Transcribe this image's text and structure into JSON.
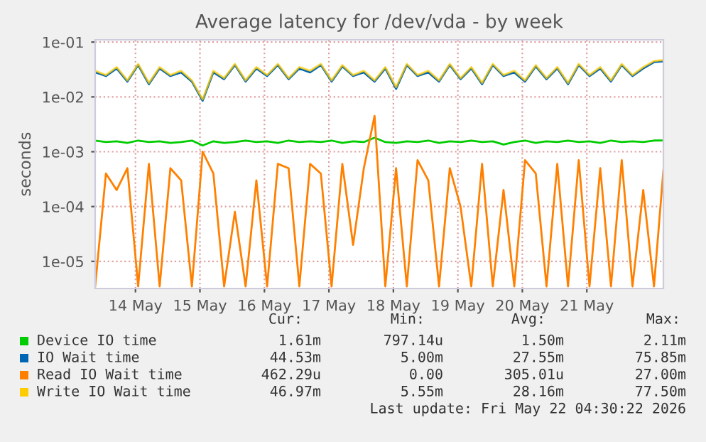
{
  "chart_data": {
    "type": "line",
    "title": "Average latency for /dev/vda - by week",
    "ylabel": "seconds",
    "x": [
      "2026-05-13T09:00",
      "2026-05-13T13:00",
      "2026-05-13T17:00",
      "2026-05-13T21:00",
      "2026-05-14T01:00",
      "2026-05-14T05:00",
      "2026-05-14T09:00",
      "2026-05-14T13:00",
      "2026-05-14T17:00",
      "2026-05-14T21:00",
      "2026-05-15T01:00",
      "2026-05-15T05:00",
      "2026-05-15T09:00",
      "2026-05-15T13:00",
      "2026-05-15T17:00",
      "2026-05-15T21:00",
      "2026-05-16T01:00",
      "2026-05-16T05:00",
      "2026-05-16T09:00",
      "2026-05-16T13:00",
      "2026-05-16T17:00",
      "2026-05-16T21:00",
      "2026-05-17T01:00",
      "2026-05-17T05:00",
      "2026-05-17T09:00",
      "2026-05-17T13:00",
      "2026-05-17T17:00",
      "2026-05-17T21:00",
      "2026-05-18T01:00",
      "2026-05-18T05:00",
      "2026-05-18T09:00",
      "2026-05-18T13:00",
      "2026-05-18T17:00",
      "2026-05-18T21:00",
      "2026-05-19T01:00",
      "2026-05-19T05:00",
      "2026-05-19T09:00",
      "2026-05-19T13:00",
      "2026-05-19T17:00",
      "2026-05-19T21:00",
      "2026-05-20T01:00",
      "2026-05-20T05:00",
      "2026-05-20T09:00",
      "2026-05-20T13:00",
      "2026-05-20T17:00",
      "2026-05-20T21:00",
      "2026-05-21T01:00",
      "2026-05-21T05:00",
      "2026-05-21T09:00",
      "2026-05-21T13:00",
      "2026-05-21T17:00",
      "2026-05-21T21:00",
      "2026-05-22T01:00",
      "2026-05-22T04:30"
    ],
    "series": [
      {
        "name": "Device IO time",
        "color": "#00cc00",
        "values": [
          0.0016,
          0.0015,
          0.00155,
          0.00145,
          0.0016,
          0.0015,
          0.00155,
          0.00145,
          0.0015,
          0.0016,
          0.0013,
          0.00155,
          0.00145,
          0.0015,
          0.0016,
          0.0015,
          0.00155,
          0.00145,
          0.0016,
          0.0015,
          0.00155,
          0.0015,
          0.0016,
          0.00145,
          0.00155,
          0.0015,
          0.0018,
          0.0015,
          0.00145,
          0.00155,
          0.0015,
          0.0016,
          0.00145,
          0.00155,
          0.0015,
          0.0016,
          0.0015,
          0.00155,
          0.00135,
          0.0015,
          0.0016,
          0.00145,
          0.00155,
          0.0015,
          0.0016,
          0.0015,
          0.00155,
          0.00145,
          0.0016,
          0.0015,
          0.00155,
          0.0015,
          0.0016,
          0.00161
        ]
      },
      {
        "name": "IO Wait time",
        "color": "#0066b3",
        "values": [
          0.028,
          0.024,
          0.033,
          0.019,
          0.038,
          0.017,
          0.033,
          0.024,
          0.028,
          0.019,
          0.0085,
          0.028,
          0.021,
          0.038,
          0.019,
          0.033,
          0.024,
          0.038,
          0.021,
          0.033,
          0.028,
          0.038,
          0.019,
          0.036,
          0.024,
          0.028,
          0.019,
          0.033,
          0.014,
          0.038,
          0.024,
          0.028,
          0.019,
          0.038,
          0.021,
          0.033,
          0.017,
          0.038,
          0.024,
          0.028,
          0.019,
          0.036,
          0.021,
          0.033,
          0.017,
          0.038,
          0.024,
          0.033,
          0.019,
          0.038,
          0.024,
          0.033,
          0.043,
          0.0445
        ]
      },
      {
        "name": "Read IO Wait time",
        "color": "#ff8000",
        "values": [
          3.5e-06,
          0.0004,
          0.0002,
          0.0005,
          3.5e-06,
          0.0006,
          3.5e-06,
          0.0005,
          0.0003,
          3.5e-06,
          0.001,
          0.0004,
          3.5e-06,
          8e-05,
          3.5e-06,
          0.0003,
          3.5e-06,
          0.0006,
          0.0005,
          3.5e-06,
          0.0006,
          0.0004,
          3.5e-06,
          0.0006,
          2e-05,
          0.0005,
          0.0045,
          3.5e-06,
          0.0005,
          3.5e-06,
          0.0007,
          0.0003,
          3.5e-06,
          0.0005,
          0.0001,
          3.5e-06,
          0.0006,
          3.5e-06,
          0.0002,
          3.5e-06,
          0.0007,
          0.0004,
          3.5e-06,
          0.0006,
          3.5e-06,
          0.0007,
          3.5e-06,
          0.0005,
          3.5e-06,
          0.0007,
          3.5e-06,
          0.0002,
          3.5e-06,
          0.00046
        ]
      },
      {
        "name": "Write IO Wait time",
        "color": "#ffcc00",
        "values": [
          0.03,
          0.025,
          0.035,
          0.02,
          0.04,
          0.018,
          0.035,
          0.025,
          0.03,
          0.02,
          0.009,
          0.03,
          0.022,
          0.04,
          0.02,
          0.035,
          0.025,
          0.04,
          0.022,
          0.035,
          0.03,
          0.04,
          0.02,
          0.038,
          0.025,
          0.03,
          0.02,
          0.035,
          0.015,
          0.04,
          0.025,
          0.03,
          0.02,
          0.04,
          0.022,
          0.035,
          0.018,
          0.04,
          0.025,
          0.03,
          0.02,
          0.038,
          0.022,
          0.035,
          0.018,
          0.04,
          0.025,
          0.035,
          0.02,
          0.04,
          0.025,
          0.035,
          0.045,
          0.047
        ]
      }
    ],
    "log": "y",
    "ylim": [
      3.2e-06,
      0.11
    ],
    "yticks": [
      {
        "value": 1e-05,
        "label": "1e-05"
      },
      {
        "value": 0.0001,
        "label": "1e-04"
      },
      {
        "value": 0.001,
        "label": "1e-03"
      },
      {
        "value": 0.01,
        "label": "1e-02"
      },
      {
        "value": 0.1,
        "label": "1e-01"
      }
    ],
    "xlim": [
      "2026-05-13T09:00",
      "2026-05-22T04:30"
    ],
    "xticks": [
      {
        "value": "2026-05-14",
        "label": "14 May"
      },
      {
        "value": "2026-05-15",
        "label": "15 May"
      },
      {
        "value": "2026-05-16",
        "label": "16 May"
      },
      {
        "value": "2026-05-17",
        "label": "17 May"
      },
      {
        "value": "2026-05-18",
        "label": "18 May"
      },
      {
        "value": "2026-05-19",
        "label": "19 May"
      },
      {
        "value": "2026-05-20",
        "label": "20 May"
      },
      {
        "value": "2026-05-21",
        "label": "21 May"
      }
    ],
    "grid": true,
    "legend": "bottom",
    "marker": "none",
    "line_style": "solid",
    "annotations": [
      "Cur:",
      "Min:",
      "Avg:",
      "Max:",
      "1.61m",
      "797.14u",
      "1.50m",
      "2.11m",
      "44.53m",
      "5.00m",
      "27.55m",
      "75.85m",
      "462.29u",
      "0.00",
      "305.01u",
      "27.00m",
      "46.97m",
      "5.55m",
      "28.16m",
      "77.50m",
      "Last update: Fri May 22 04:30:22 2026"
    ]
  }
}
